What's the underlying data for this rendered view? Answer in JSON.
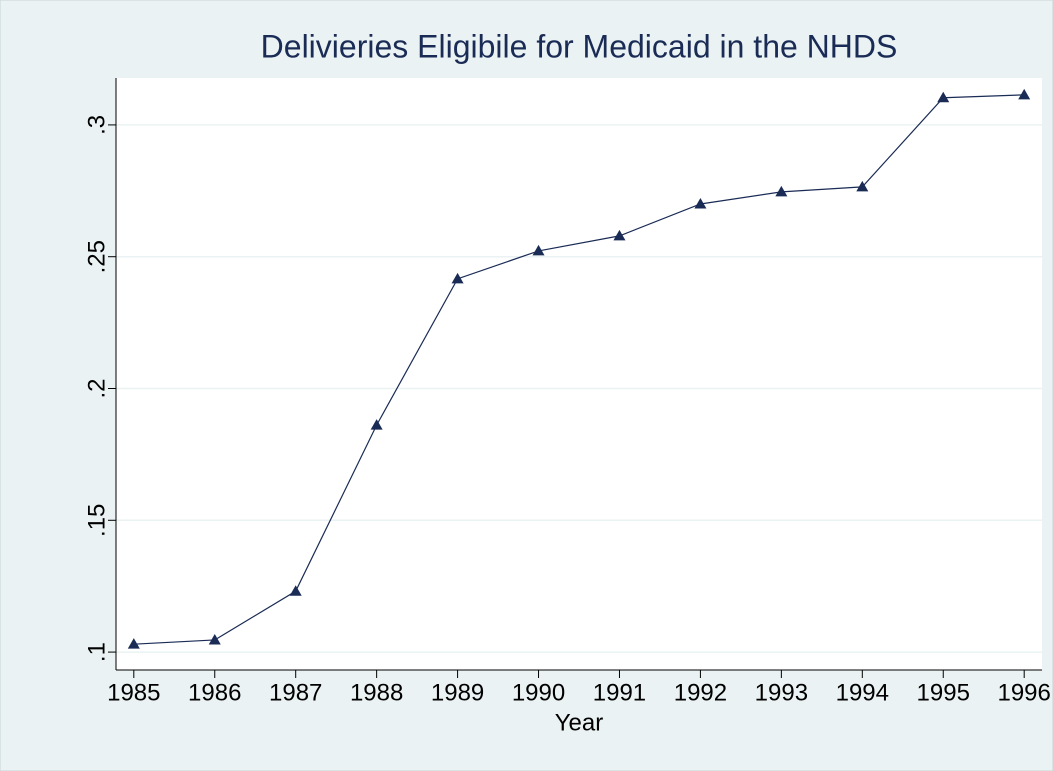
{
  "chart_data": {
    "type": "line",
    "title": "Delivieries Eligibile for Medicaid in the NHDS",
    "x_label": "Year",
    "x": [
      1985,
      1986,
      1987,
      1988,
      1989,
      1990,
      1991,
      1992,
      1993,
      1994,
      1995,
      1996
    ],
    "series": [
      {
        "color": "#1a2b55",
        "values": [
          0.103,
          0.1046,
          0.1231,
          0.1861,
          0.2416,
          0.2522,
          0.2579,
          0.27,
          0.2746,
          0.2765,
          0.3103,
          0.3114
        ]
      }
    ],
    "xlim": [
      1984.78,
      1996.22
    ],
    "xticks": [
      1985,
      1986,
      1987,
      1988,
      1989,
      1990,
      1991,
      1992,
      1993,
      1994,
      1995,
      1996
    ],
    "ylim": [
      0.0932,
      0.3178
    ],
    "yticks": [
      {
        "value": 0.1,
        "label": ".1"
      },
      {
        "value": 0.15,
        "label": ".15"
      },
      {
        "value": 0.2,
        "label": ".2"
      },
      {
        "value": 0.25,
        "label": ".25"
      },
      {
        "value": 0.3,
        "label": ".3"
      }
    ],
    "grid": true
  }
}
